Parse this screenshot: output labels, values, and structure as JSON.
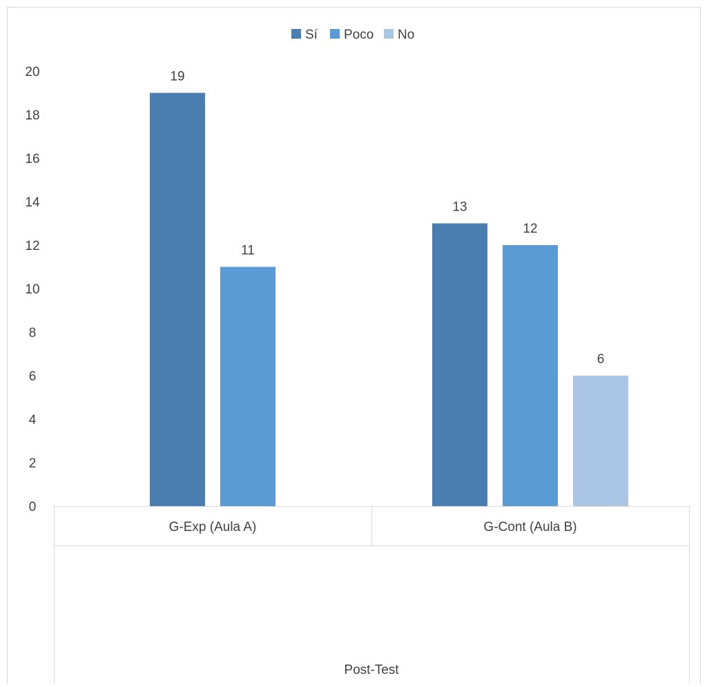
{
  "chart_data": {
    "type": "bar",
    "categories": [
      "G-Exp (Aula A)",
      "G-Cont (Aula B)"
    ],
    "group_label": "Post-Test",
    "series": [
      {
        "name": "Sí",
        "color": "#4A7EB1",
        "values": [
          19,
          13
        ]
      },
      {
        "name": "Poco",
        "color": "#5B9BD5",
        "values": [
          11,
          12
        ]
      },
      {
        "name": "No",
        "color": "#ABC5E4",
        "values": [
          null,
          6
        ]
      }
    ],
    "data_labels": true,
    "ylim": [
      0,
      20
    ],
    "yticks": [
      0,
      2,
      4,
      6,
      8,
      10,
      12,
      14,
      16,
      18,
      20
    ],
    "grid": false,
    "legend_position": "top-center"
  }
}
